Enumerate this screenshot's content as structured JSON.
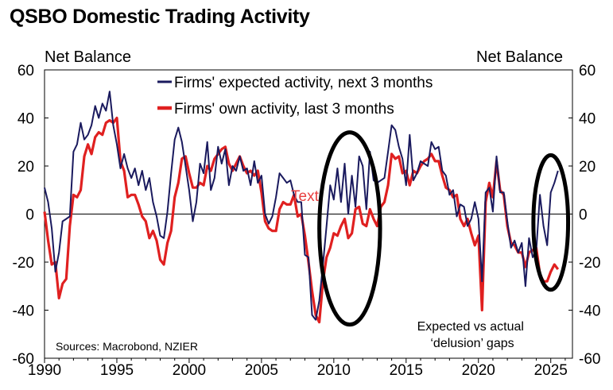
{
  "title": "QSBO Domestic Trading Activity",
  "chart_data": {
    "type": "line",
    "title": "QSBO Domestic Trading Activity",
    "ylabel_left": "Net Balance",
    "ylabel_right": "Net Balance",
    "ylim": [
      -60,
      60
    ],
    "yticks": [
      60,
      40,
      20,
      0,
      -20,
      -40,
      -60
    ],
    "xlim": [
      1990,
      2026.5
    ],
    "xticks": [
      1990,
      1995,
      2000,
      2005,
      2010,
      2015,
      2020,
      2025
    ],
    "zero_line": true,
    "legend": [
      "Firms' expected activity, next 3 months",
      "Firms' own activity, last 3 months"
    ],
    "source": "Sources: Macrobond, NZIER",
    "annotation": "Expected vs actual ‘delusion’ gaps",
    "stray_label": "Text",
    "series": [
      {
        "name": "Firms' expected activity, next 3 months",
        "color": "#1a1a5e",
        "points": [
          [
            1990.0,
            11
          ],
          [
            1990.25,
            5
          ],
          [
            1990.5,
            -6
          ],
          [
            1990.75,
            -24
          ],
          [
            1991.0,
            -16
          ],
          [
            1991.25,
            -3
          ],
          [
            1991.5,
            -2
          ],
          [
            1991.75,
            -1
          ],
          [
            1992.0,
            26
          ],
          [
            1992.25,
            29
          ],
          [
            1992.5,
            38
          ],
          [
            1992.75,
            31
          ],
          [
            1993.0,
            33
          ],
          [
            1993.25,
            37
          ],
          [
            1993.5,
            45
          ],
          [
            1993.75,
            40
          ],
          [
            1994.0,
            46
          ],
          [
            1994.25,
            43
          ],
          [
            1994.5,
            51
          ],
          [
            1994.75,
            37
          ],
          [
            1995.0,
            29
          ],
          [
            1995.25,
            19
          ],
          [
            1995.5,
            25
          ],
          [
            1995.75,
            19
          ],
          [
            1996.0,
            15
          ],
          [
            1996.25,
            19
          ],
          [
            1996.5,
            12
          ],
          [
            1996.75,
            18
          ],
          [
            1997.0,
            10
          ],
          [
            1997.25,
            15
          ],
          [
            1997.5,
            5
          ],
          [
            1997.75,
            -1
          ],
          [
            1998.0,
            -9
          ],
          [
            1998.25,
            -10
          ],
          [
            1998.5,
            1
          ],
          [
            1998.75,
            17
          ],
          [
            1999.0,
            31
          ],
          [
            1999.25,
            36
          ],
          [
            1999.5,
            30
          ],
          [
            1999.75,
            20
          ],
          [
            2000.0,
            10
          ],
          [
            2000.25,
            -3
          ],
          [
            2000.5,
            5
          ],
          [
            2000.75,
            21
          ],
          [
            2001.0,
            17
          ],
          [
            2001.25,
            30
          ],
          [
            2001.5,
            10
          ],
          [
            2001.75,
            15
          ],
          [
            2002.0,
            28
          ],
          [
            2002.25,
            21
          ],
          [
            2002.5,
            27
          ],
          [
            2002.75,
            12
          ],
          [
            2003.0,
            20
          ],
          [
            2003.25,
            18
          ],
          [
            2003.5,
            24
          ],
          [
            2003.75,
            18
          ],
          [
            2004.0,
            19
          ],
          [
            2004.25,
            12
          ],
          [
            2004.5,
            22
          ],
          [
            2004.75,
            13
          ],
          [
            2005.0,
            16
          ],
          [
            2005.25,
            0
          ],
          [
            2005.5,
            -4
          ],
          [
            2005.75,
            -1
          ],
          [
            2006.0,
            7
          ],
          [
            2006.25,
            17
          ],
          [
            2006.5,
            15
          ],
          [
            2006.75,
            13
          ],
          [
            2007.0,
            14
          ],
          [
            2007.25,
            8
          ],
          [
            2007.5,
            5
          ],
          [
            2007.75,
            5
          ],
          [
            2008.0,
            -17
          ],
          [
            2008.25,
            -18
          ],
          [
            2008.5,
            -42
          ],
          [
            2008.75,
            -44
          ],
          [
            2009.0,
            -36
          ],
          [
            2009.25,
            -21
          ],
          [
            2009.5,
            -5
          ],
          [
            2009.75,
            12
          ],
          [
            2010.0,
            6
          ],
          [
            2010.25,
            19
          ],
          [
            2010.5,
            5
          ],
          [
            2010.75,
            21
          ],
          [
            2011.0,
            0
          ],
          [
            2011.25,
            16
          ],
          [
            2011.5,
            3
          ],
          [
            2011.75,
            24
          ],
          [
            2012.0,
            20
          ],
          [
            2012.25,
            2
          ],
          [
            2012.5,
            26
          ],
          [
            2012.75,
            14
          ],
          [
            2013.0,
            13
          ],
          [
            2013.25,
            14
          ],
          [
            2013.5,
            15
          ],
          [
            2013.75,
            26
          ],
          [
            2014.0,
            37
          ],
          [
            2014.25,
            35
          ],
          [
            2014.5,
            28
          ],
          [
            2014.75,
            23
          ],
          [
            2015.0,
            12
          ],
          [
            2015.25,
            33
          ],
          [
            2015.5,
            14
          ],
          [
            2015.75,
            17
          ],
          [
            2016.0,
            22
          ],
          [
            2016.25,
            21
          ],
          [
            2016.5,
            20
          ],
          [
            2016.75,
            30
          ],
          [
            2017.0,
            27
          ],
          [
            2017.25,
            28
          ],
          [
            2017.5,
            18
          ],
          [
            2017.75,
            16
          ],
          [
            2018.0,
            8
          ],
          [
            2018.25,
            10
          ],
          [
            2018.5,
            -1
          ],
          [
            2018.75,
            4
          ],
          [
            2019.0,
            3
          ],
          [
            2019.25,
            -5
          ],
          [
            2019.5,
            -2
          ],
          [
            2019.75,
            5
          ],
          [
            2020.0,
            -2
          ],
          [
            2020.25,
            -28
          ],
          [
            2020.5,
            9
          ],
          [
            2020.75,
            11
          ],
          [
            2021.0,
            1
          ],
          [
            2021.25,
            24
          ],
          [
            2021.5,
            9
          ],
          [
            2021.75,
            9
          ],
          [
            2022.0,
            -3
          ],
          [
            2022.25,
            -14
          ],
          [
            2022.5,
            -11
          ],
          [
            2022.75,
            -16
          ],
          [
            2023.0,
            -12
          ],
          [
            2023.25,
            -30
          ],
          [
            2023.5,
            -10
          ],
          [
            2023.75,
            -18
          ],
          [
            2024.0,
            -15
          ],
          [
            2024.25,
            8
          ],
          [
            2024.5,
            -5
          ],
          [
            2024.75,
            -13
          ],
          [
            2025.0,
            9
          ],
          [
            2025.25,
            13
          ],
          [
            2025.5,
            18
          ]
        ]
      },
      {
        "name": "Firms' own activity, last 3 months",
        "color": "#e02020",
        "points": [
          [
            1990.0,
            1
          ],
          [
            1990.25,
            -11
          ],
          [
            1990.5,
            -21
          ],
          [
            1990.75,
            -20
          ],
          [
            1991.0,
            -35
          ],
          [
            1991.25,
            -29
          ],
          [
            1991.5,
            -27
          ],
          [
            1991.75,
            -5
          ],
          [
            1992.0,
            8
          ],
          [
            1992.25,
            7
          ],
          [
            1992.5,
            10
          ],
          [
            1992.75,
            24
          ],
          [
            1993.0,
            29
          ],
          [
            1993.25,
            25
          ],
          [
            1993.5,
            32
          ],
          [
            1993.75,
            34
          ],
          [
            1994.0,
            33
          ],
          [
            1994.25,
            38
          ],
          [
            1994.5,
            39
          ],
          [
            1994.75,
            38
          ],
          [
            1995.0,
            40
          ],
          [
            1995.25,
            22
          ],
          [
            1995.5,
            18
          ],
          [
            1995.75,
            7
          ],
          [
            1996.0,
            8
          ],
          [
            1996.25,
            8
          ],
          [
            1996.5,
            4
          ],
          [
            1996.75,
            -1
          ],
          [
            1997.0,
            -3
          ],
          [
            1997.25,
            -10
          ],
          [
            1997.5,
            -7
          ],
          [
            1997.75,
            -11
          ],
          [
            1998.0,
            -19
          ],
          [
            1998.25,
            -21
          ],
          [
            1998.5,
            -12
          ],
          [
            1998.75,
            -7
          ],
          [
            1999.0,
            7
          ],
          [
            1999.25,
            13
          ],
          [
            1999.5,
            23
          ],
          [
            1999.75,
            24
          ],
          [
            2000.0,
            17
          ],
          [
            2000.25,
            11
          ],
          [
            2000.5,
            11
          ],
          [
            2000.75,
            13
          ],
          [
            2001.0,
            12
          ],
          [
            2001.25,
            20
          ],
          [
            2001.5,
            18
          ],
          [
            2001.75,
            23
          ],
          [
            2002.0,
            25
          ],
          [
            2002.25,
            27
          ],
          [
            2002.5,
            28
          ],
          [
            2002.75,
            21
          ],
          [
            2003.0,
            18
          ],
          [
            2003.25,
            21
          ],
          [
            2003.5,
            24
          ],
          [
            2003.75,
            20
          ],
          [
            2004.0,
            17
          ],
          [
            2004.25,
            18
          ],
          [
            2004.5,
            16
          ],
          [
            2004.75,
            18
          ],
          [
            2005.0,
            9
          ],
          [
            2005.25,
            -3
          ],
          [
            2005.5,
            -6
          ],
          [
            2005.75,
            -7
          ],
          [
            2006.0,
            -7
          ],
          [
            2006.25,
            2
          ],
          [
            2006.5,
            5
          ],
          [
            2006.75,
            4
          ],
          [
            2007.0,
            4
          ],
          [
            2007.25,
            8
          ],
          [
            2007.5,
            -1
          ],
          [
            2007.75,
            0
          ],
          [
            2008.0,
            -9
          ],
          [
            2008.25,
            -20
          ],
          [
            2008.5,
            -32
          ],
          [
            2008.75,
            -42
          ],
          [
            2009.0,
            -45
          ],
          [
            2009.25,
            -28
          ],
          [
            2009.5,
            -18
          ],
          [
            2009.75,
            -14
          ],
          [
            2010.0,
            -8
          ],
          [
            2010.25,
            -9
          ],
          [
            2010.5,
            -5
          ],
          [
            2010.75,
            -2
          ],
          [
            2011.0,
            -10
          ],
          [
            2011.25,
            -8
          ],
          [
            2011.5,
            2
          ],
          [
            2011.75,
            3
          ],
          [
            2012.0,
            -4
          ],
          [
            2012.25,
            -5
          ],
          [
            2012.5,
            2
          ],
          [
            2012.75,
            -2
          ],
          [
            2013.0,
            -5
          ],
          [
            2013.25,
            3
          ],
          [
            2013.5,
            5
          ],
          [
            2013.75,
            12
          ],
          [
            2014.0,
            25
          ],
          [
            2014.25,
            23
          ],
          [
            2014.5,
            24
          ],
          [
            2014.75,
            17
          ],
          [
            2015.0,
            18
          ],
          [
            2015.25,
            12
          ],
          [
            2015.5,
            18
          ],
          [
            2015.75,
            17
          ],
          [
            2016.0,
            20
          ],
          [
            2016.25,
            22
          ],
          [
            2016.5,
            23
          ],
          [
            2016.75,
            25
          ],
          [
            2017.0,
            22
          ],
          [
            2017.25,
            22
          ],
          [
            2017.5,
            16
          ],
          [
            2017.75,
            11
          ],
          [
            2018.0,
            10
          ],
          [
            2018.25,
            7
          ],
          [
            2018.5,
            8
          ],
          [
            2018.75,
            -2
          ],
          [
            2019.0,
            -5
          ],
          [
            2019.25,
            -2
          ],
          [
            2019.5,
            -8
          ],
          [
            2019.75,
            -13
          ],
          [
            2020.0,
            -9
          ],
          [
            2020.25,
            -40
          ],
          [
            2020.5,
            5
          ],
          [
            2020.75,
            13
          ],
          [
            2021.0,
            7
          ],
          [
            2021.25,
            22
          ],
          [
            2021.5,
            10
          ],
          [
            2021.75,
            8
          ],
          [
            2022.0,
            -5
          ],
          [
            2022.25,
            -12
          ],
          [
            2022.5,
            -13
          ],
          [
            2022.75,
            -16
          ],
          [
            2023.0,
            -16
          ],
          [
            2023.25,
            -22
          ],
          [
            2023.5,
            -16
          ],
          [
            2023.75,
            -15
          ],
          [
            2024.0,
            -14
          ],
          [
            2024.25,
            -25
          ],
          [
            2024.5,
            -28
          ],
          [
            2024.75,
            -28
          ],
          [
            2025.0,
            -24
          ],
          [
            2025.25,
            -21
          ],
          [
            2025.5,
            -23
          ]
        ]
      }
    ],
    "highlight_periods": [
      {
        "name": "gfc-gap",
        "center": [
          2011.1,
          -6
        ],
        "span": [
          4.2,
          80
        ]
      },
      {
        "name": "current-gap",
        "center": [
          2025.0,
          -3.5
        ],
        "span": [
          2.4,
          56
        ]
      }
    ]
  }
}
